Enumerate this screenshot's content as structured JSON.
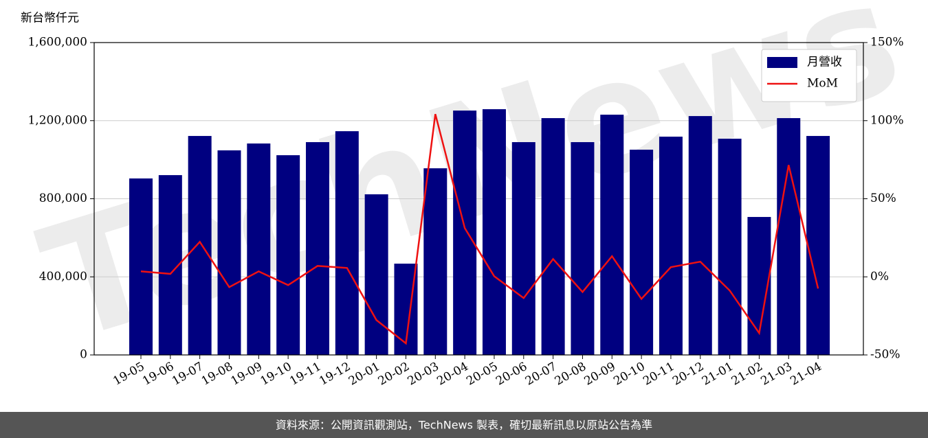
{
  "chart_data": {
    "type": "bar",
    "y_label": "新台幣仟元",
    "watermark": "TechNews",
    "source": "資料來源：公開資訊觀測站，TechNews 製表，確切最新訊息以原站公告為準",
    "categories": [
      "19-05",
      "19-06",
      "19-07",
      "19-08",
      "19-09",
      "19-10",
      "19-11",
      "19-12",
      "20-01",
      "20-02",
      "20-03",
      "20-04",
      "20-05",
      "20-06",
      "20-07",
      "20-08",
      "20-09",
      "20-10",
      "20-11",
      "20-12",
      "21-01",
      "21-02",
      "21-03",
      "21-04"
    ],
    "series": [
      {
        "name": "月營收",
        "type": "bar",
        "color": "#000080",
        "values": [
          904000,
          921000,
          1121600,
          1047800,
          1083000,
          1023000,
          1090000,
          1146000,
          822700,
          467600,
          956000,
          1251700,
          1258700,
          1090000,
          1213000,
          1090000,
          1230600,
          1051300,
          1118000,
          1223500,
          1107500,
          706700,
          1213000,
          1121600
        ]
      },
      {
        "name": "MoM",
        "type": "line",
        "color": "#ee1111",
        "axis": "y2",
        "values": [
          3.5,
          1.9,
          22.4,
          -6.6,
          3.5,
          -5.3,
          7.0,
          5.7,
          -27.7,
          -42.6,
          104.2,
          31.2,
          0.4,
          -13.6,
          11.4,
          -9.7,
          13.2,
          -14.1,
          6.2,
          9.7,
          -8.8,
          -36.0,
          71.6,
          -7.5
        ]
      }
    ],
    "ylim": [
      0,
      1600000
    ],
    "yticks": [
      0,
      {
        "value": 400000,
        "label": "400,000"
      },
      {
        "value": 800000,
        "label": "800,000"
      },
      {
        "value": 1200000,
        "label": "1,200,000"
      },
      {
        "value": 1600000,
        "label": "1,600,000"
      }
    ],
    "y2lim": [
      -50,
      150
    ],
    "y2ticks": [
      {
        "value": -50,
        "label": "-50%"
      },
      {
        "value": 0,
        "label": "0%"
      },
      {
        "value": 50,
        "label": "50%"
      },
      {
        "value": 100,
        "label": "100%"
      },
      {
        "value": 150,
        "label": "150%"
      }
    ],
    "grid": true,
    "legend": "upper right"
  }
}
